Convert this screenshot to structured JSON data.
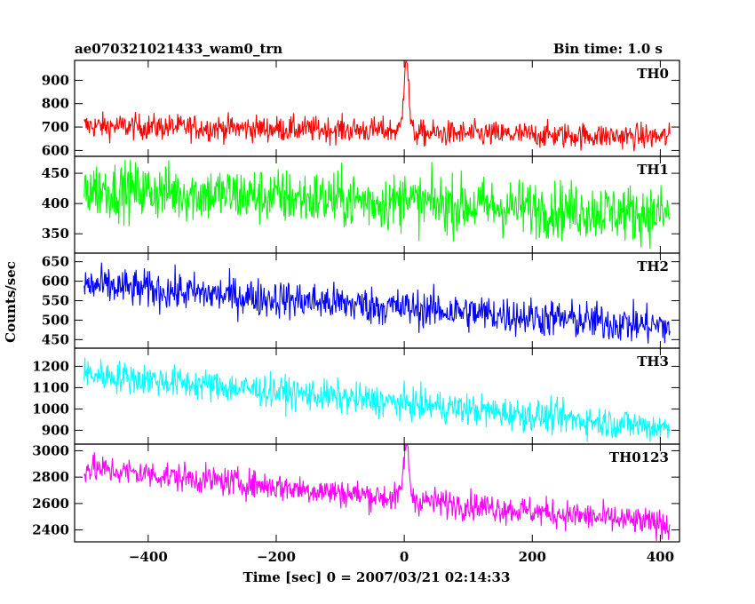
{
  "chart_data": {
    "type": "line",
    "title": "ae070321021433_wam0_trn",
    "subtitle": "Bin time: 1.0 s",
    "xlabel": "Time [sec] 0 = 2007/03/21 02:14:33",
    "ylabel": "Counts/sec",
    "xlim": [
      -515,
      430
    ],
    "x_ticks": [
      -400,
      -200,
      0,
      200,
      400
    ],
    "x_tick_labels": [
      "−400",
      "−200",
      "0",
      "200",
      "400"
    ],
    "x_range": [
      -500,
      415
    ],
    "grid": false,
    "panels": [
      {
        "name": "TH0",
        "color": "#ff0000",
        "ylim": [
          575,
          985
        ],
        "yticks": [
          600,
          700,
          800,
          900
        ],
        "baseline_start": 705,
        "baseline_end": 668,
        "noise": 28,
        "peaks": [
          {
            "x": 3,
            "height": 330,
            "width": 5
          }
        ],
        "step_after_peak": -10
      },
      {
        "name": "TH1",
        "color": "#00ff00",
        "ylim": [
          318,
          478
        ],
        "yticks": [
          350,
          400,
          450
        ],
        "baseline_start": 425,
        "baseline_end": 382,
        "noise": 24,
        "peaks": [
          {
            "x": 2,
            "height": 55,
            "width": 2
          }
        ],
        "step_after_peak": 0
      },
      {
        "name": "TH2",
        "color": "#0000ff",
        "ylim": [
          428,
          672
        ],
        "yticks": [
          450,
          500,
          550,
          600,
          650
        ],
        "baseline_start": 590,
        "baseline_end": 483,
        "noise": 25,
        "peaks": [],
        "step_after_peak": 0
      },
      {
        "name": "TH3",
        "color": "#00ffff",
        "ylim": [
          835,
          1285
        ],
        "yticks": [
          900,
          1000,
          1100,
          1200
        ],
        "baseline_start": 1165,
        "baseline_end": 910,
        "noise": 38,
        "peaks": [],
        "step_after_peak": 0
      },
      {
        "name": "TH0123",
        "color": "#ff00ff",
        "ylim": [
          2310,
          3050
        ],
        "yticks": [
          2400,
          2600,
          2800,
          3000
        ],
        "baseline_start": 2870,
        "baseline_end": 2440,
        "noise": 55,
        "peaks": [
          {
            "x": 3,
            "height": 420,
            "width": 6
          }
        ],
        "step_after_peak": 0
      }
    ]
  }
}
